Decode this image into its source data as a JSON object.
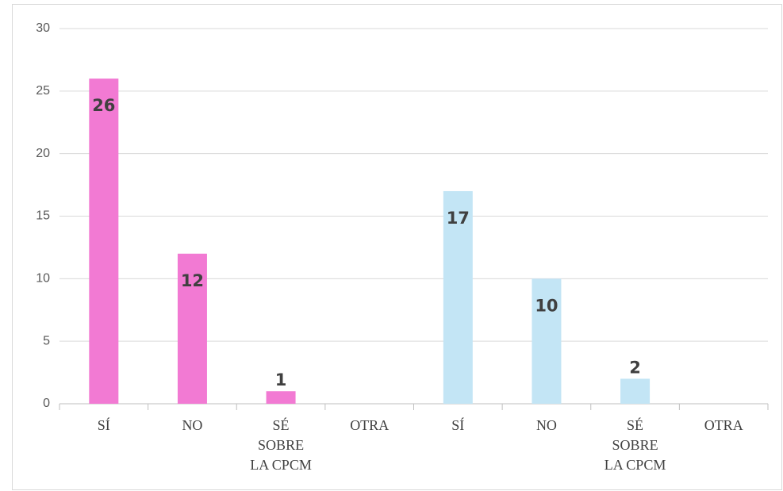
{
  "chart_data": {
    "type": "bar",
    "categories": [
      "SÍ",
      "NO",
      "SÉ SOBRE LA CPCM",
      "OTRA",
      "SÍ",
      "NO",
      "SÉ SOBRE LA CPCM",
      "OTRA"
    ],
    "values": [
      26,
      12,
      1,
      null,
      17,
      10,
      2,
      null
    ],
    "colors": [
      "#f27ad3",
      "#f27ad3",
      "#f27ad3",
      "#f27ad3",
      "#c3e5f5",
      "#c3e5f5",
      "#c3e5f5",
      "#c3e5f5"
    ],
    "ylim": [
      0,
      30
    ],
    "yticks": [
      0,
      5,
      10,
      15,
      20,
      25,
      30
    ],
    "grid": true,
    "data_labels": true
  }
}
